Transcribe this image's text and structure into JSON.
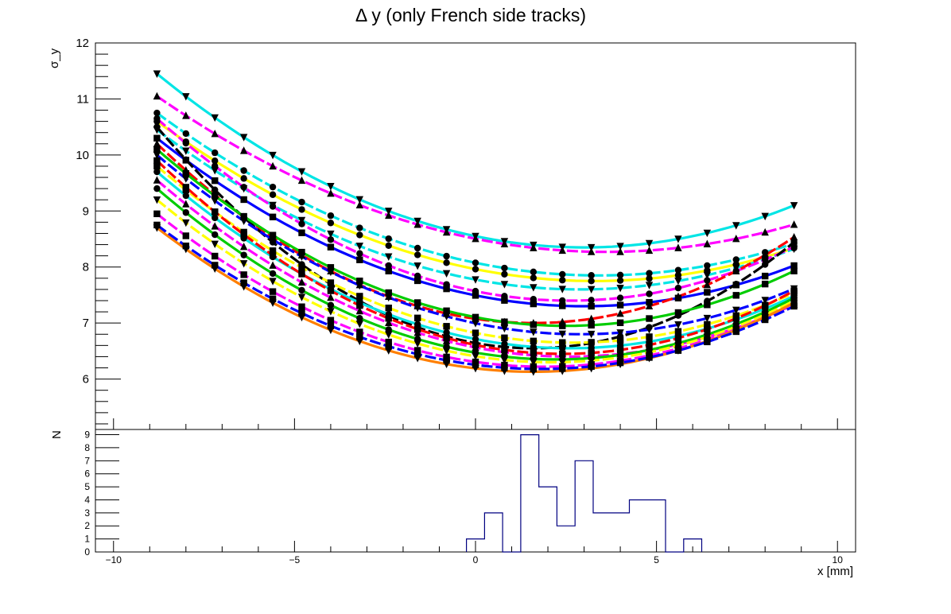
{
  "chart_data": [
    {
      "type": "line",
      "panel": "top",
      "title": "Δ y (only French side tracks)",
      "xlabel": "",
      "ylabel": "σ_y",
      "xlim": [
        -10.5,
        10.5
      ],
      "ylim": [
        5.1,
        12.0
      ],
      "yticks": [
        6,
        7,
        8,
        9,
        10,
        11,
        12
      ],
      "grid": false,
      "x_points": [
        -8.8,
        -8.0,
        -7.2,
        -6.4,
        -5.6,
        -4.8,
        -4.0,
        -3.2,
        -2.4,
        -1.6,
        -0.8,
        0.0,
        0.8,
        1.6,
        2.4,
        3.2,
        4.0,
        4.8,
        5.6,
        6.4,
        7.2,
        8.0,
        8.8
      ],
      "series": [
        {
          "color": "#00e5e5",
          "marker": "triangle-down",
          "params": [
            11.45,
            8.35,
            3.0
          ]
        },
        {
          "color": "#ff00ff",
          "marker": "triangle-up",
          "params": [
            11.05,
            8.27,
            3.6
          ]
        },
        {
          "color": "#00e5e5",
          "marker": "circle",
          "params": [
            10.75,
            7.85,
            3.4
          ]
        },
        {
          "color": "#ffff00",
          "marker": "circle",
          "params": [
            10.6,
            7.75,
            3.3
          ]
        },
        {
          "color": "#00e5e5",
          "marker": "triangle-down",
          "params": [
            10.45,
            7.6,
            2.9
          ]
        },
        {
          "color": "#ff00ff",
          "marker": "circle",
          "params": [
            10.65,
            7.4,
            2.6
          ]
        },
        {
          "color": "#0000ff",
          "marker": "square",
          "params": [
            10.3,
            7.3,
            3.0
          ]
        },
        {
          "color": "#ff0000",
          "marker": "triangle-up",
          "params": [
            10.2,
            7.0,
            1.6
          ]
        },
        {
          "color": "#000000",
          "marker": "circle",
          "params": [
            10.5,
            6.55,
            1.6
          ]
        },
        {
          "color": "#00cc00",
          "marker": "square",
          "params": [
            10.1,
            6.95,
            2.5
          ]
        },
        {
          "color": "#0000ff",
          "marker": "triangle-down",
          "params": [
            10.0,
            6.8,
            2.9
          ]
        },
        {
          "color": "#ffff00",
          "marker": "square",
          "params": [
            9.8,
            6.65,
            2.7
          ]
        },
        {
          "color": "#00e5e5",
          "marker": "circle",
          "params": [
            9.7,
            6.55,
            2.6
          ]
        },
        {
          "color": "#ff0000",
          "marker": "square",
          "params": [
            9.9,
            6.45,
            2.4
          ]
        },
        {
          "color": "#ff00ff",
          "marker": "triangle-up",
          "params": [
            9.55,
            6.4,
            2.6
          ]
        },
        {
          "color": "#00cc00",
          "marker": "circle",
          "params": [
            9.4,
            6.35,
            2.2
          ]
        },
        {
          "color": "#ffff00",
          "marker": "triangle-down",
          "params": [
            9.2,
            6.3,
            2.1
          ]
        },
        {
          "color": "#ff00ff",
          "marker": "square",
          "params": [
            8.95,
            6.22,
            1.9
          ]
        },
        {
          "color": "#ff7f00",
          "marker": "triangle-down",
          "params": [
            8.7,
            6.13,
            1.6
          ]
        },
        {
          "color": "#0000ff",
          "marker": "square",
          "params": [
            8.75,
            6.18,
            1.8
          ]
        }
      ]
    },
    {
      "type": "histogram",
      "panel": "bottom",
      "xlabel": "x [mm]",
      "ylabel": "N",
      "xlim": [
        -10.5,
        10.5
      ],
      "ylim": [
        0,
        9.4
      ],
      "xticks": [
        -10,
        -5,
        0,
        5,
        10
      ],
      "yticks": [
        0,
        1,
        2,
        3,
        4,
        5,
        6,
        7,
        8,
        9
      ],
      "bin_width": 0.5,
      "bins": [
        {
          "x0": -0.25,
          "value": 1
        },
        {
          "x0": 0.25,
          "value": 3
        },
        {
          "x0": 0.75,
          "value": 0
        },
        {
          "x0": 1.25,
          "value": 9
        },
        {
          "x0": 1.75,
          "value": 5
        },
        {
          "x0": 2.25,
          "value": 2
        },
        {
          "x0": 2.75,
          "value": 7
        },
        {
          "x0": 3.25,
          "value": 3
        },
        {
          "x0": 3.75,
          "value": 3
        },
        {
          "x0": 4.25,
          "value": 4
        },
        {
          "x0": 4.75,
          "value": 4
        },
        {
          "x0": 5.25,
          "value": 0
        },
        {
          "x0": 5.75,
          "value": 1
        }
      ],
      "line_color": "#000080"
    }
  ]
}
